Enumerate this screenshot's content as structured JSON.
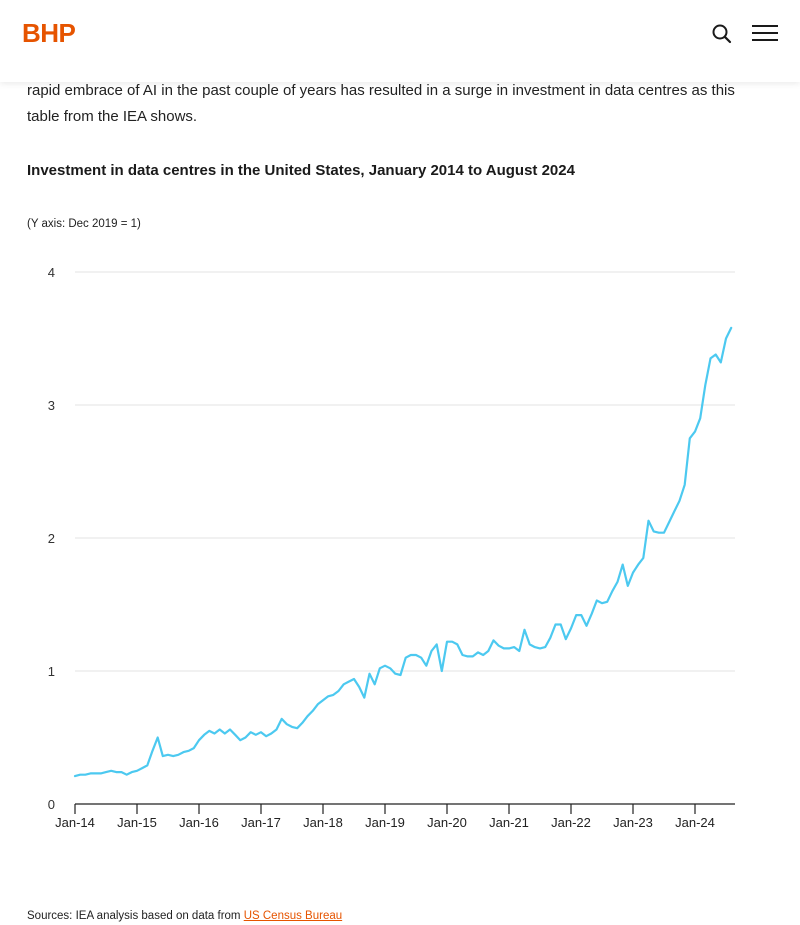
{
  "header": {
    "logo_text": "BHP",
    "brand_color": "#e65400",
    "search_icon": "search-icon",
    "menu_icon": "hamburger-menu-icon"
  },
  "article": {
    "intro_text": "rapid embrace of AI in the past couple of years has resulted in a surge in investment in data centres as this table from the IEA shows."
  },
  "chart_data": {
    "type": "line",
    "title": "Investment in data centres in the United States, January 2014 to August 2024",
    "subtitle": "(Y axis: Dec 2019 = 1)",
    "xlabel": "",
    "ylabel": "",
    "ylim": [
      0,
      4
    ],
    "yticks": [
      "0",
      "1",
      "2",
      "3",
      "4"
    ],
    "x_ticks": [
      "Jan-14",
      "Jan-15",
      "Jan-16",
      "Jan-17",
      "Jan-18",
      "Jan-19",
      "Jan-20",
      "Jan-21",
      "Jan-22",
      "Jan-23",
      "Jan-24"
    ],
    "grid": "horizontal",
    "line_color": "#4cc9f0",
    "series": [
      {
        "x": [
          "2014-01",
          "2014-02",
          "2014-03",
          "2014-04",
          "2014-05",
          "2014-06",
          "2014-07",
          "2014-08",
          "2014-09",
          "2014-10",
          "2014-11",
          "2014-12",
          "2015-01",
          "2015-02",
          "2015-03",
          "2015-04",
          "2015-05",
          "2015-06",
          "2015-07",
          "2015-08",
          "2015-09",
          "2015-10",
          "2015-11",
          "2015-12",
          "2016-01",
          "2016-02",
          "2016-03",
          "2016-04",
          "2016-05",
          "2016-06",
          "2016-07",
          "2016-08",
          "2016-09",
          "2016-10",
          "2016-11",
          "2016-12",
          "2017-01",
          "2017-02",
          "2017-03",
          "2017-04",
          "2017-05",
          "2017-06",
          "2017-07",
          "2017-08",
          "2017-09",
          "2017-10",
          "2017-11",
          "2017-12",
          "2018-01",
          "2018-02",
          "2018-03",
          "2018-04",
          "2018-05",
          "2018-06",
          "2018-07",
          "2018-08",
          "2018-09",
          "2018-10",
          "2018-11",
          "2018-12",
          "2019-01",
          "2019-02",
          "2019-03",
          "2019-04",
          "2019-05",
          "2019-06",
          "2019-07",
          "2019-08",
          "2019-09",
          "2019-10",
          "2019-11",
          "2019-12",
          "2020-01",
          "2020-02",
          "2020-03",
          "2020-04",
          "2020-05",
          "2020-06",
          "2020-07",
          "2020-08",
          "2020-09",
          "2020-10",
          "2020-11",
          "2020-12",
          "2021-01",
          "2021-02",
          "2021-03",
          "2021-04",
          "2021-05",
          "2021-06",
          "2021-07",
          "2021-08",
          "2021-09",
          "2021-10",
          "2021-11",
          "2021-12",
          "2022-01",
          "2022-02",
          "2022-03",
          "2022-04",
          "2022-05",
          "2022-06",
          "2022-07",
          "2022-08",
          "2022-09",
          "2022-10",
          "2022-11",
          "2022-12",
          "2023-01",
          "2023-02",
          "2023-03",
          "2023-04",
          "2023-05",
          "2023-06",
          "2023-07",
          "2023-08",
          "2023-09",
          "2023-10",
          "2023-11",
          "2023-12",
          "2024-01",
          "2024-02",
          "2024-03",
          "2024-04",
          "2024-05",
          "2024-06",
          "2024-07",
          "2024-08"
        ],
        "values": [
          0.21,
          0.22,
          0.22,
          0.23,
          0.23,
          0.23,
          0.24,
          0.25,
          0.24,
          0.24,
          0.22,
          0.24,
          0.25,
          0.27,
          0.29,
          0.4,
          0.5,
          0.36,
          0.37,
          0.36,
          0.37,
          0.39,
          0.4,
          0.42,
          0.48,
          0.52,
          0.55,
          0.53,
          0.56,
          0.53,
          0.56,
          0.52,
          0.48,
          0.5,
          0.54,
          0.52,
          0.54,
          0.51,
          0.53,
          0.56,
          0.64,
          0.6,
          0.58,
          0.57,
          0.61,
          0.66,
          0.7,
          0.75,
          0.78,
          0.81,
          0.82,
          0.85,
          0.9,
          0.92,
          0.94,
          0.88,
          0.8,
          0.98,
          0.9,
          1.02,
          1.04,
          1.02,
          0.98,
          0.97,
          1.1,
          1.12,
          1.12,
          1.1,
          1.04,
          1.15,
          1.2,
          1.0,
          1.22,
          1.22,
          1.2,
          1.12,
          1.11,
          1.11,
          1.14,
          1.12,
          1.15,
          1.23,
          1.19,
          1.17,
          1.17,
          1.18,
          1.15,
          1.31,
          1.2,
          1.18,
          1.17,
          1.18,
          1.25,
          1.35,
          1.35,
          1.24,
          1.32,
          1.42,
          1.42,
          1.34,
          1.43,
          1.53,
          1.51,
          1.52,
          1.6,
          1.67,
          1.8,
          1.64,
          1.74,
          1.8,
          1.85,
          2.13,
          2.05,
          2.04,
          2.04,
          2.12,
          2.2,
          2.28,
          2.4,
          2.75,
          2.8,
          2.9,
          3.15,
          3.35,
          3.38,
          3.32,
          3.5,
          3.58
        ]
      }
    ]
  },
  "footer": {
    "sources_prefix": "Sources: IEA analysis based on data from ",
    "sources_link": "US Census Bureau"
  }
}
